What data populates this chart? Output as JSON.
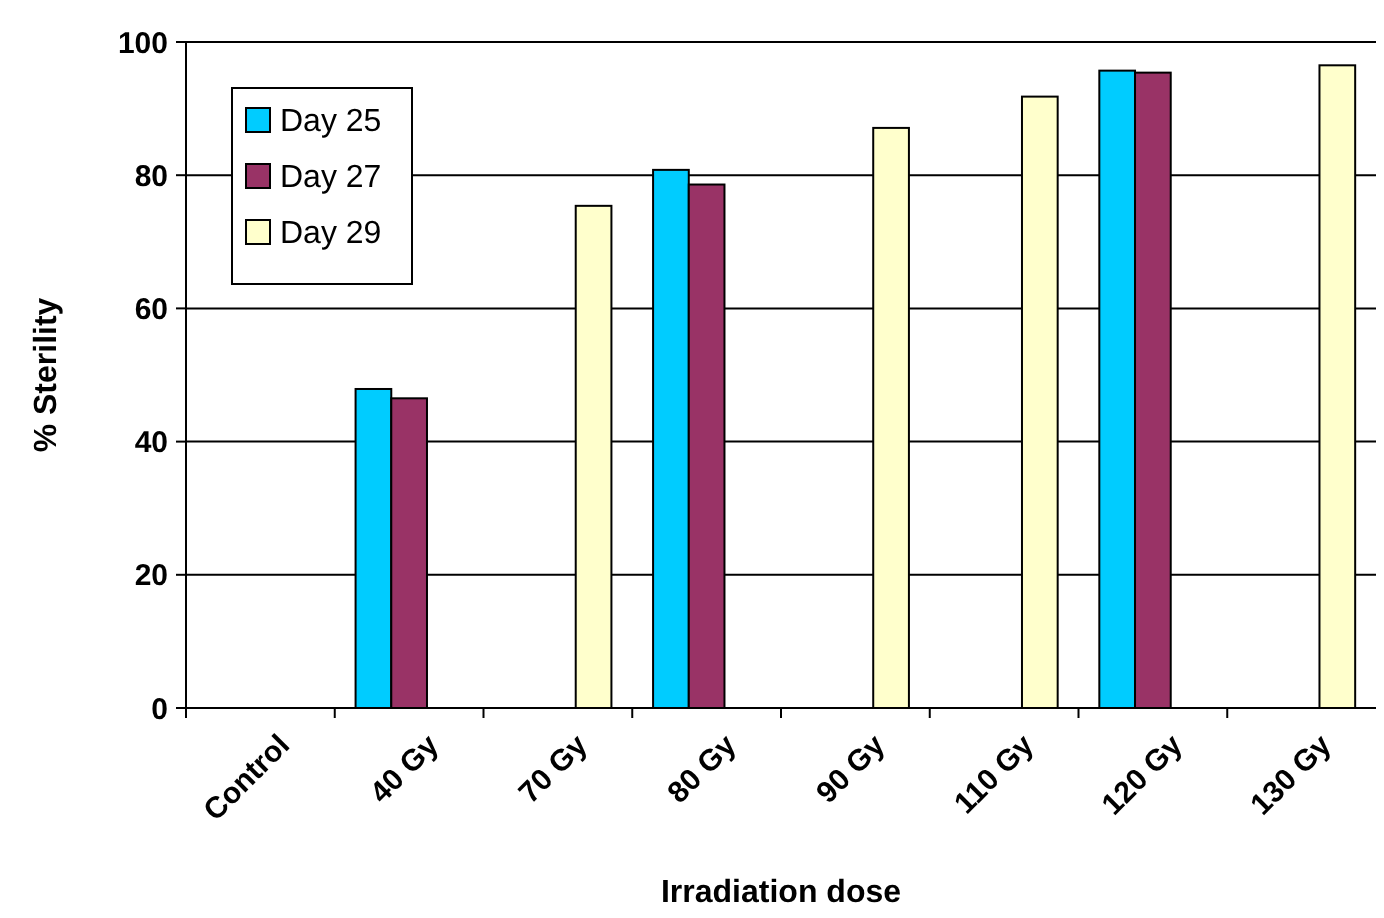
{
  "chart_data": {
    "type": "bar",
    "xlabel": "Irradiation dose",
    "ylabel": "% Sterility",
    "categories": [
      "Control",
      "40 Gy",
      "70 Gy",
      "80 Gy",
      "90 Gy",
      "110 Gy",
      "120 Gy",
      "130 Gy"
    ],
    "series": [
      {
        "name": "Day 25",
        "color": "#00ccff",
        "values": [
          null,
          47.9,
          null,
          80.8,
          null,
          null,
          95.7,
          null
        ]
      },
      {
        "name": "Day 27",
        "color": "#993366",
        "values": [
          null,
          46.5,
          null,
          78.6,
          null,
          null,
          95.4,
          null
        ]
      },
      {
        "name": "Day 29",
        "color": "#ffffcc",
        "values": [
          null,
          null,
          75.4,
          null,
          87.1,
          91.8,
          null,
          96.5
        ]
      }
    ],
    "ylim": [
      0,
      100
    ],
    "yticks": [
      0,
      20,
      40,
      60,
      80,
      100
    ],
    "grid": "y",
    "legend": "top left"
  }
}
